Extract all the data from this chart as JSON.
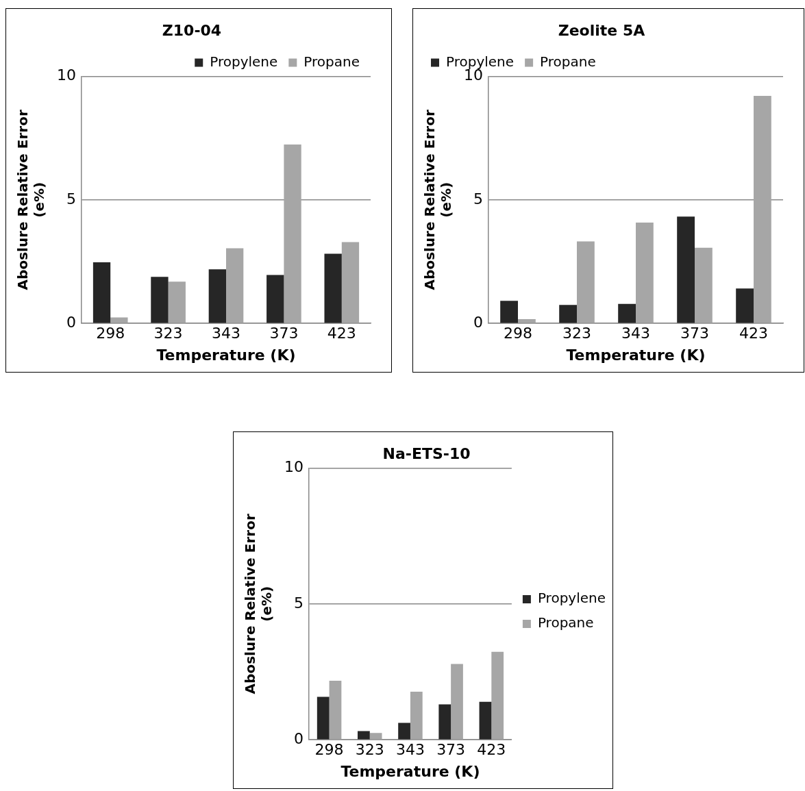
{
  "chart_data": [
    {
      "type": "bar",
      "title": "Z10-04",
      "xlabel": "Temperature (K)",
      "ylabel": "Aboslure Relative Error (e%)",
      "categories": [
        "298",
        "323",
        "343",
        "373",
        "423"
      ],
      "series": [
        {
          "name": "Propylene",
          "color": "#262626",
          "values": [
            2.47,
            1.88,
            2.19,
            1.96,
            2.82
          ]
        },
        {
          "name": "Propane",
          "color": "#a6a6a6",
          "values": [
            0.24,
            1.69,
            3.04,
            7.24,
            3.29
          ]
        }
      ],
      "ylim": [
        0,
        10
      ],
      "yticks": [
        0,
        5,
        10
      ],
      "grid": "y",
      "legend": "top right"
    },
    {
      "type": "bar",
      "title": "Zeolite 5A",
      "xlabel": "Temperature (K)",
      "ylabel": "Aboslure Relative Error (e%)",
      "categories": [
        "298",
        "323",
        "343",
        "373",
        "423"
      ],
      "series": [
        {
          "name": "Propylene",
          "color": "#262626",
          "values": [
            0.91,
            0.75,
            0.79,
            4.32,
            1.41
          ]
        },
        {
          "name": "Propane",
          "color": "#a6a6a6",
          "values": [
            0.17,
            3.32,
            4.08,
            3.06,
            9.21
          ]
        }
      ],
      "ylim": [
        0,
        10
      ],
      "yticks": [
        0,
        5,
        10
      ],
      "grid": "y",
      "legend": "top left"
    },
    {
      "type": "bar",
      "title": "Na-ETS-10",
      "xlabel": "Temperature (K)",
      "ylabel": "Aboslure Relative Error (e%)",
      "categories": [
        "298",
        "323",
        "343",
        "373",
        "423"
      ],
      "series": [
        {
          "name": "Propylene",
          "color": "#262626",
          "values": [
            1.58,
            0.32,
            0.62,
            1.3,
            1.4
          ]
        },
        {
          "name": "Propane",
          "color": "#a6a6a6",
          "values": [
            2.17,
            0.25,
            1.77,
            2.79,
            3.24
          ]
        }
      ],
      "ylim": [
        0,
        10
      ],
      "yticks": [
        0,
        5,
        10
      ],
      "grid": "y",
      "legend": "right"
    }
  ]
}
